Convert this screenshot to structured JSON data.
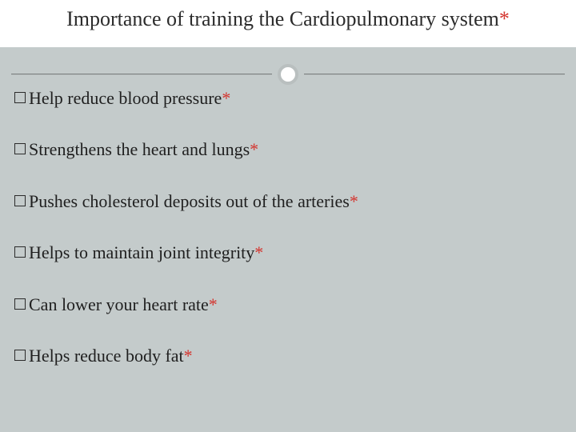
{
  "slide": {
    "background_color": "#c4cbcb",
    "title_background_color": "#ffffff",
    "title": {
      "text": "Importance of training the Cardiopulmonary system",
      "asterisk": "*",
      "fontsize": 26,
      "color": "#2b2b2b",
      "asterisk_color": "#d4342e"
    },
    "divider": {
      "line_color": "#7a7f7f",
      "circle_border_color": "#b9bfbf",
      "circle_fill": "#ffffff",
      "circle_border_width": 4,
      "circle_diameter": 26
    },
    "bullets": {
      "marker": "square-outline",
      "marker_color": "#2b2b2b",
      "fontsize": 22,
      "text_color": "#1f1f1f",
      "asterisk_color": "#d4342e",
      "items": [
        {
          "text": "Help reduce blood pressure",
          "asterisk": "*"
        },
        {
          "text": "Strengthens the heart and lungs",
          "asterisk": "*"
        },
        {
          "text": "Pushes cholesterol deposits out of the arteries",
          "asterisk": "*"
        },
        {
          "text": "Helps to maintain joint integrity",
          "asterisk": "*"
        },
        {
          "text": "Can lower your heart rate",
          "asterisk": "*"
        },
        {
          "text": "Helps reduce body fat",
          "asterisk": "*"
        }
      ]
    }
  }
}
